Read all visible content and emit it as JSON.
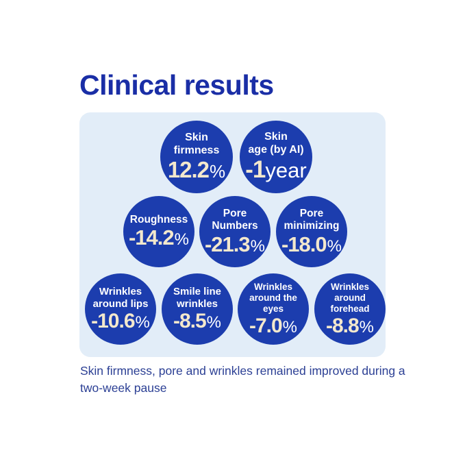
{
  "page": {
    "title": "Clinical results",
    "caption": "Skin firmness, pore and wrinkles remained improved during a two-week pause"
  },
  "colors": {
    "title_blue": "#1a2ea6",
    "circle_blue": "#1c3dae",
    "panel_background": "#e2edf8",
    "value_cream": "#f3e8cd",
    "label_white": "#ffffff",
    "caption_blue": "#2b3f94",
    "page_background": "#ffffff"
  },
  "panel": {
    "circles": [
      {
        "id": "skin-firmness",
        "label": "Skin\nfirmness",
        "value": "12.2",
        "unit": "%"
      },
      {
        "id": "skin-age",
        "label": "Skin\nage (by AI)",
        "value": "-1",
        "unit": "year"
      },
      {
        "id": "roughness",
        "label": "Roughness",
        "value": "-14.2",
        "unit": "%"
      },
      {
        "id": "pore-numbers",
        "label": "Pore\nNumbers",
        "value": "-21.3",
        "unit": "%"
      },
      {
        "id": "pore-minimizing",
        "label": "Pore\nminimizing",
        "value": "-18.0",
        "unit": "%"
      },
      {
        "id": "wrinkles-lips",
        "label": "Wrinkles\naround lips",
        "value": "-10.6",
        "unit": "%"
      },
      {
        "id": "smile-line",
        "label": "Smile line\nwrinkles",
        "value": "-8.5",
        "unit": "%"
      },
      {
        "id": "wrinkles-eyes",
        "label": "Wrinkles\naround the\neyes",
        "value": "-7.0",
        "unit": "%"
      },
      {
        "id": "wrinkles-forehead",
        "label": "Wrinkles\naround\nforehead",
        "value": "-8.8",
        "unit": "%"
      }
    ]
  },
  "chart_data": {
    "type": "table",
    "title": "Clinical results",
    "categories": [
      "Skin firmness",
      "Skin age (by AI)",
      "Roughness",
      "Pore Numbers",
      "Pore minimizing",
      "Wrinkles around lips",
      "Smile line wrinkles",
      "Wrinkles around the eyes",
      "Wrinkles around forehead"
    ],
    "values": [
      12.2,
      -1,
      -14.2,
      -21.3,
      -18.0,
      -10.6,
      -8.5,
      -7.0,
      -8.8
    ],
    "units": [
      "%",
      "year",
      "%",
      "%",
      "%",
      "%",
      "%",
      "%",
      "%"
    ],
    "annotations": [
      "Skin firmness, pore and wrinkles remained improved during a two-week pause"
    ],
    "legend_position": "none",
    "grid": false
  }
}
